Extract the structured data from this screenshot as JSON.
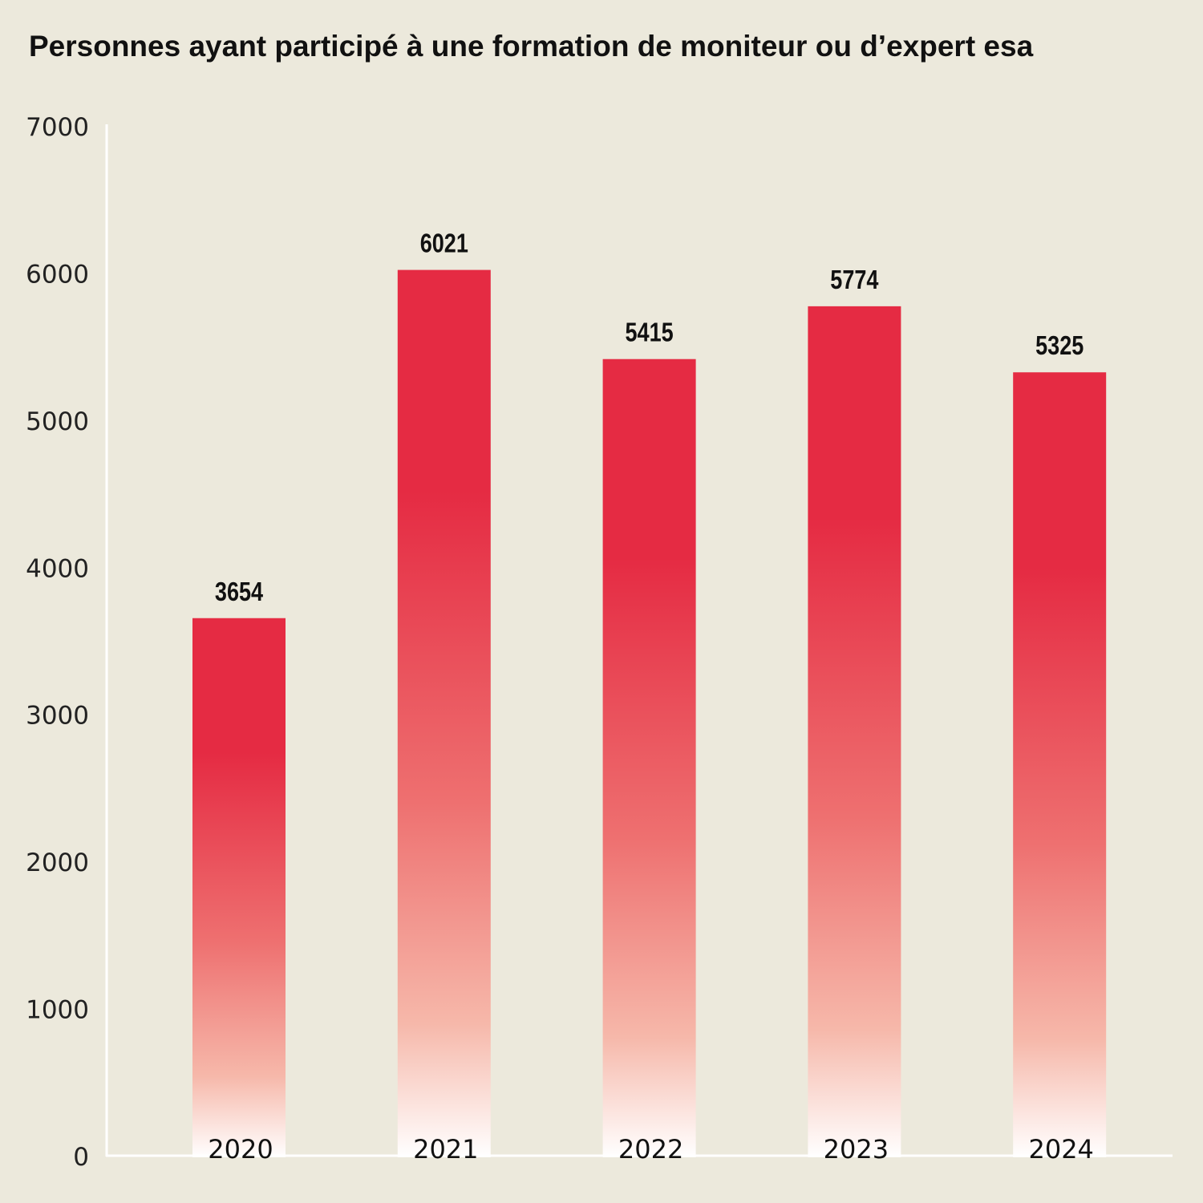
{
  "chart_data": {
    "type": "bar",
    "title": "Personnes ayant participé à une formation de moniteur ou d’expert esa",
    "xlabel": "",
    "ylabel": "",
    "categories": [
      "2020",
      "2021",
      "2022",
      "2023",
      "2024"
    ],
    "values": [
      3654,
      6021,
      5415,
      5774,
      5325
    ],
    "ylim": [
      0,
      7000
    ],
    "yticks": [
      0,
      1000,
      2000,
      3000,
      4000,
      5000,
      6000,
      7000
    ],
    "grid": false,
    "data_labels": true,
    "colors": {
      "bar_top": "#e52b43",
      "bar_bottom": "#ffffff",
      "background": "#ece9dc",
      "axis": "#ffffff"
    }
  }
}
